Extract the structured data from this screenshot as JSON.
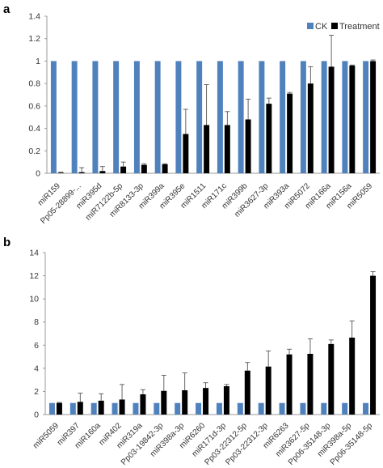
{
  "chart_data": [
    {
      "panel_label": "a",
      "type": "bar",
      "categories": [
        "miR159",
        "Pp05-28899-...",
        "miR395d",
        "miR7122b-5p",
        "miR8133-3p",
        "miR399a",
        "miR395e",
        "miR1511",
        "miR171c",
        "miR399b",
        "miR3627-3p",
        "miR393a",
        "miR5072",
        "miR166a",
        "miR156a",
        "miR5059"
      ],
      "series": [
        {
          "name": "CK",
          "color": "#4f81bd",
          "values": [
            1,
            1,
            1,
            1,
            1,
            1,
            1,
            1,
            1,
            1,
            1,
            1,
            1,
            1,
            1,
            1
          ]
        },
        {
          "name": "Treatment",
          "color": "#000000",
          "values": [
            0.005,
            0.01,
            0.02,
            0.06,
            0.075,
            0.08,
            0.35,
            0.43,
            0.43,
            0.48,
            0.62,
            0.71,
            0.8,
            0.95,
            0.96,
            1.0
          ],
          "errors": [
            0.005,
            0.04,
            0.04,
            0.04,
            0.01,
            0.005,
            0.22,
            0.36,
            0.12,
            0.18,
            0.05,
            0.01,
            0.15,
            0.28,
            0.005,
            0.01
          ]
        }
      ],
      "ylim": [
        0,
        1.4
      ],
      "yticks": [
        "0",
        "0.2",
        "0.4",
        "0.6",
        "0.8",
        "1",
        "1.2",
        "1.4"
      ],
      "legend_position": "top-right"
    },
    {
      "panel_label": "b",
      "type": "bar",
      "categories": [
        "miR5059",
        "miR397",
        "miR160a",
        "miR402",
        "miR319a",
        "Pp03-19842-3p",
        "miR398a-3p",
        "miR6260",
        "miR171d-3p",
        "Pp03-22312-5p",
        "Pp03-22312-3p",
        "miR6263",
        "miR3627-5p",
        "Pp06-35148-3p",
        "miR398a-5p",
        "Pp06-35148-5p"
      ],
      "series": [
        {
          "name": "CK",
          "color": "#4f81bd",
          "values": [
            1,
            1,
            1,
            1,
            1,
            1,
            1,
            1,
            1,
            1,
            1,
            1,
            1,
            1,
            1,
            1
          ]
        },
        {
          "name": "Treatment",
          "color": "#000000",
          "values": [
            1.0,
            1.1,
            1.2,
            1.3,
            1.75,
            2.05,
            2.1,
            2.3,
            2.45,
            3.8,
            4.15,
            5.2,
            5.25,
            6.1,
            6.65,
            12.0
          ],
          "errors": [
            0.05,
            0.75,
            0.6,
            1.3,
            0.4,
            1.35,
            1.5,
            0.45,
            0.15,
            0.7,
            1.35,
            0.45,
            1.3,
            0.35,
            1.45,
            0.35
          ]
        }
      ],
      "ylim": [
        0,
        14
      ],
      "yticks": [
        "0",
        "2",
        "4",
        "6",
        "8",
        "10",
        "12",
        "14"
      ]
    }
  ]
}
